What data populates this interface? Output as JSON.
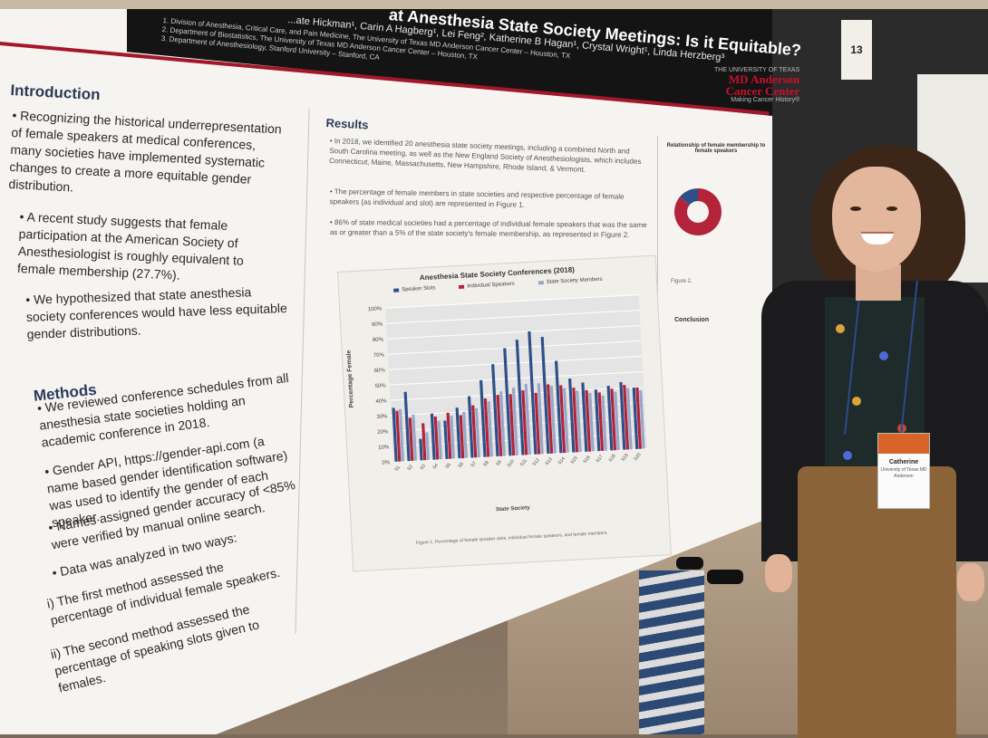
{
  "poster": {
    "title": "at Anesthesia State Society Meetings: Is it Equitable?",
    "authors": "...ate Hickman¹, Carin A Hagberg¹, Lei Feng², Katherine B Hagan¹, Crystal Wright¹, Linda Herzberg³",
    "affiliations": [
      "1. Division of Anesthesia, Critical Care, and Pain Medicine, The University of Texas MD Anderson Cancer Center – Houston, TX",
      "2. Department of Biostatistics, The University of Texas MD Anderson Cancer Center – Houston, TX",
      "3. Department of Anesthesiology, Stanford University – Stanford, CA"
    ],
    "logo": {
      "line1": "THE UNIVERSITY OF TEXAS",
      "line2": "MD Anderson",
      "line3": "Cancer Center",
      "tagline": "Making Cancer History®"
    },
    "introduction": {
      "heading": "Introduction",
      "bullets": [
        "Recognizing the historical underrepresentation of female speakers at medical conferences, many societies have implemented systematic changes to create a more equitable gender distribution.",
        "A recent study suggests that female participation at the American Society of Anesthesiologist is roughly equivalent to female membership (27.7%).",
        "We hypothesized that state anesthesia society conferences would have less equitable gender distributions."
      ]
    },
    "methods": {
      "heading": "Methods",
      "bullets": [
        "We reviewed conference schedules from all anesthesia state societies holding an academic conference in 2018.",
        "Gender API, https://gender-api.com (a name based gender identification software) was used to identify the gender of each speaker.",
        "Names assigned gender accuracy of <85% were verified by manual online search.",
        "Data was analyzed in two ways:"
      ],
      "sub_bullets": [
        {
          "marker": "i)",
          "text": "The first method assessed the percentage of individual female speakers."
        },
        {
          "marker": "ii)",
          "text": "The second method assessed the percentage of speaking slots given to females."
        }
      ]
    },
    "results": {
      "heading": "Results",
      "bullets": [
        "In 2018, we identified 20 anesthesia state society meetings, including a combined North and South Carolina meeting, as well as the New England Society of Anesthesiologists, which includes Connecticut, Maine, Massachusetts, New Hampshire, Rhode Island, & Vermont.",
        "The percentage of female members in state societies and respective percentage of female speakers (as individual and slot) are represented in Figure 1.",
        "86% of state medical societies had a percentage of individual female speakers that was the same as or greater than a 5% of the state society's female membership, as represented in Figure 2."
      ],
      "figure_caption": "Figure 1. Percentage of female speaker slots, individual female speakers, and female members."
    },
    "side_panel": {
      "pie_title": "Relationship of female membership to female speakers",
      "conclusion_heading": "Conclusion",
      "figure2_caption": "Figure 2."
    }
  },
  "chart_data": {
    "type": "bar",
    "title": "Anesthesia State Society Conferences (2018)",
    "xlabel": "State Society",
    "ylabel": "Percentage Female",
    "ylim": [
      0,
      100
    ],
    "yticks": [
      "0%",
      "10%",
      "20%",
      "30%",
      "40%",
      "50%",
      "60%",
      "70%",
      "80%",
      "90%",
      "100%"
    ],
    "categories": [
      "S1",
      "S2",
      "S3",
      "S4",
      "S5",
      "S6",
      "S7",
      "S8",
      "S9",
      "S10",
      "S11",
      "S12",
      "S13",
      "S14",
      "S15",
      "S16",
      "S17",
      "S18",
      "S19",
      "S20"
    ],
    "series": [
      {
        "name": "Speaker Slots",
        "color": "#2f4f8a",
        "values": [
          35,
          45,
          14,
          30,
          25,
          33,
          40,
          50,
          60,
          70,
          75,
          80,
          76,
          60,
          48,
          45,
          40,
          42,
          44,
          40
        ]
      },
      {
        "name": "Individual Speakers",
        "color": "#b3233a",
        "values": [
          33,
          28,
          24,
          28,
          30,
          28,
          34,
          38,
          40,
          40,
          42,
          40,
          45,
          44,
          42,
          40,
          38,
          40,
          42,
          40
        ]
      },
      {
        "name": "State Society Members",
        "color": "#9aa8c7",
        "values": [
          34,
          30,
          18,
          25,
          28,
          30,
          32,
          36,
          42,
          44,
          46,
          46,
          44,
          42,
          40,
          38,
          36,
          38,
          40,
          38
        ]
      }
    ]
  },
  "pie_data": {
    "type": "pie",
    "values": [
      86,
      14
    ],
    "colors": [
      "#b3233a",
      "#2f4f8a"
    ]
  },
  "scene": {
    "booth_number": "13",
    "badge_name": "Catherine",
    "badge_sub": "University of Texas MD Anderson"
  }
}
